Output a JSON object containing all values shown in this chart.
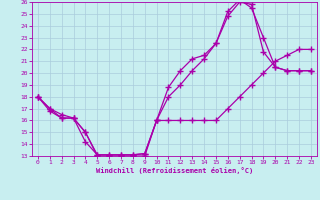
{
  "bg_color": "#c8eef0",
  "grid_color": "#aaccdd",
  "line_color": "#aa00aa",
  "xlim": [
    -0.5,
    23.5
  ],
  "ylim": [
    13,
    26
  ],
  "xticks": [
    0,
    1,
    2,
    3,
    4,
    5,
    6,
    7,
    8,
    9,
    10,
    11,
    12,
    13,
    14,
    15,
    16,
    17,
    18,
    19,
    20,
    21,
    22,
    23
  ],
  "yticks": [
    13,
    14,
    15,
    16,
    17,
    18,
    19,
    20,
    21,
    22,
    23,
    24,
    25,
    26
  ],
  "line1_x": [
    0,
    1,
    2,
    3,
    4,
    5,
    6,
    7,
    8,
    9,
    10,
    11,
    12,
    13,
    14,
    15,
    16,
    17,
    18,
    19,
    20,
    21,
    22,
    23
  ],
  "line1_y": [
    18,
    17,
    16.2,
    16.2,
    14.2,
    13.1,
    13.1,
    13.1,
    13.1,
    13.2,
    16,
    18.8,
    20.2,
    21.2,
    21.5,
    22.5,
    25.2,
    26.2,
    25.5,
    23,
    20.5,
    20.2,
    20.2,
    20.2
  ],
  "line2_x": [
    0,
    1,
    2,
    3,
    4,
    5,
    6,
    7,
    8,
    9,
    10,
    11,
    12,
    13,
    14,
    15,
    16,
    17,
    18,
    19,
    20,
    21,
    22,
    23
  ],
  "line2_y": [
    18,
    17,
    16.5,
    16.2,
    15,
    13,
    13,
    13,
    13,
    13,
    16,
    16,
    16,
    16,
    16,
    16,
    17,
    18,
    19,
    20,
    21,
    21.5,
    22,
    22
  ],
  "line3_x": [
    0,
    1,
    2,
    3,
    4,
    5,
    6,
    7,
    8,
    9,
    10,
    11,
    12,
    13,
    14,
    15,
    16,
    17,
    18,
    19,
    20,
    21,
    22,
    23
  ],
  "line3_y": [
    18,
    16.8,
    16.2,
    16.2,
    15,
    13.1,
    13.1,
    13.1,
    13.1,
    13.2,
    16,
    18,
    19,
    20.2,
    21.2,
    22.5,
    24.8,
    26,
    25.8,
    21.8,
    20.5,
    20.2,
    20.2,
    20.2
  ],
  "xlabel": "Windchill (Refroidissement éolien,°C)",
  "marker": "+",
  "marker_size": 4,
  "linewidth": 0.9
}
